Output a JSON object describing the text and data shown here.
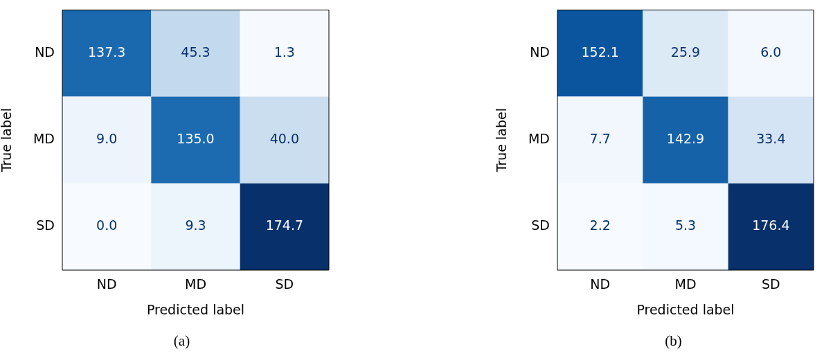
{
  "chart_data": [
    {
      "type": "heatmap",
      "categories": [
        "ND",
        "MD",
        "SD"
      ],
      "y_categories": [
        "ND",
        "MD",
        "SD"
      ],
      "xlabel": "Predicted label",
      "ylabel": "True label",
      "annotations": [
        "(a)"
      ],
      "data_labels": true,
      "cells": [
        [
          137.3,
          45.3,
          1.3
        ],
        [
          9.0,
          135.0,
          40.0
        ],
        [
          0.0,
          9.3,
          174.7
        ]
      ],
      "cell_labels": [
        [
          "137.3",
          "45.3",
          "1.3"
        ],
        [
          "9.0",
          "135.0",
          "40.0"
        ],
        [
          "0.0",
          "9.3",
          "174.7"
        ]
      ]
    },
    {
      "type": "heatmap",
      "categories": [
        "ND",
        "MD",
        "SD"
      ],
      "y_categories": [
        "ND",
        "MD",
        "SD"
      ],
      "xlabel": "Predicted label",
      "ylabel": "True label",
      "annotations": [
        "(b)"
      ],
      "data_labels": true,
      "cells": [
        [
          152.1,
          25.9,
          6.0
        ],
        [
          7.7,
          142.9,
          33.4
        ],
        [
          2.2,
          5.3,
          176.4
        ]
      ],
      "cell_labels": [
        [
          "152.1",
          "25.9",
          "6.0"
        ],
        [
          "7.7",
          "142.9",
          "33.4"
        ],
        [
          "2.2",
          "5.3",
          "176.4"
        ]
      ]
    }
  ]
}
